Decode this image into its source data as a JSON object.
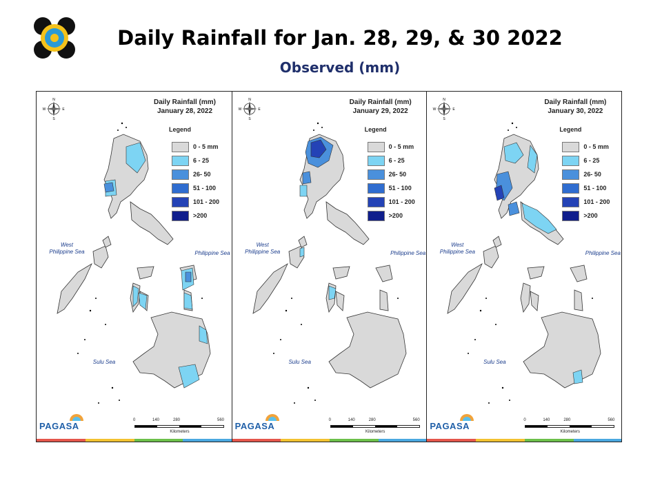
{
  "header": {
    "title": "Daily Rainfall for Jan. 28, 29, & 30 2022",
    "subtitle": "Observed (mm)"
  },
  "legend": {
    "title": "Legend",
    "items": [
      {
        "label": "0 - 5 mm",
        "color": "#d9d9d9"
      },
      {
        "label": "6 - 25",
        "color": "#7dd4f3"
      },
      {
        "label": "26- 50",
        "color": "#4a90dc"
      },
      {
        "label": "51 - 100",
        "color": "#2f6dd0"
      },
      {
        "label": "101 - 200",
        "color": "#2443b6"
      },
      {
        "label": ">200",
        "color": "#0f1e8c"
      }
    ]
  },
  "seas": {
    "west_line1": "West",
    "west_line2": "Philippine Sea",
    "philippine": "Philippine Sea",
    "sulu": "Sulu Sea"
  },
  "compass_labels": {
    "n": "N",
    "s": "S",
    "e": "E",
    "w": "W"
  },
  "branding": {
    "name": "PAGASA"
  },
  "scale": {
    "ticks": [
      "0",
      "140",
      "280",
      "560"
    ],
    "unit": "Kilometers"
  },
  "maps": [
    {
      "title_line1": "Daily Rainfall (mm)",
      "title_line2": "January 28, 2022",
      "rain_areas": [
        {
          "region": "northern Luzon (Cagayan Valley)",
          "class": "6 - 25"
        },
        {
          "region": "La Union / Benguet coast",
          "class": "26- 50"
        },
        {
          "region": "Samar / Leyte",
          "class": "26- 50"
        },
        {
          "region": "Panay / Negros",
          "class": "6 - 25"
        },
        {
          "region": "Mindanao (Davao / Surigao)",
          "class": "6 - 25"
        }
      ]
    },
    {
      "title_line1": "Daily Rainfall (mm)",
      "title_line2": "January 29, 2022",
      "rain_areas": [
        {
          "region": "Ilocos Norte / Cagayan",
          "class": "51 - 100"
        },
        {
          "region": "Abra / Ilocos Sur",
          "class": "26- 50"
        },
        {
          "region": "Panay",
          "class": "6 - 25"
        }
      ]
    },
    {
      "title_line1": "Daily Rainfall (mm)",
      "title_line2": "January 30, 2022",
      "rain_areas": [
        {
          "region": "Ilocos / Pangasinan",
          "class": "51 - 100"
        },
        {
          "region": "Central Luzon",
          "class": "26- 50"
        },
        {
          "region": "Bicol / Camarines",
          "class": "6 - 25"
        },
        {
          "region": "Davao",
          "class": "6 - 25"
        }
      ]
    }
  ]
}
